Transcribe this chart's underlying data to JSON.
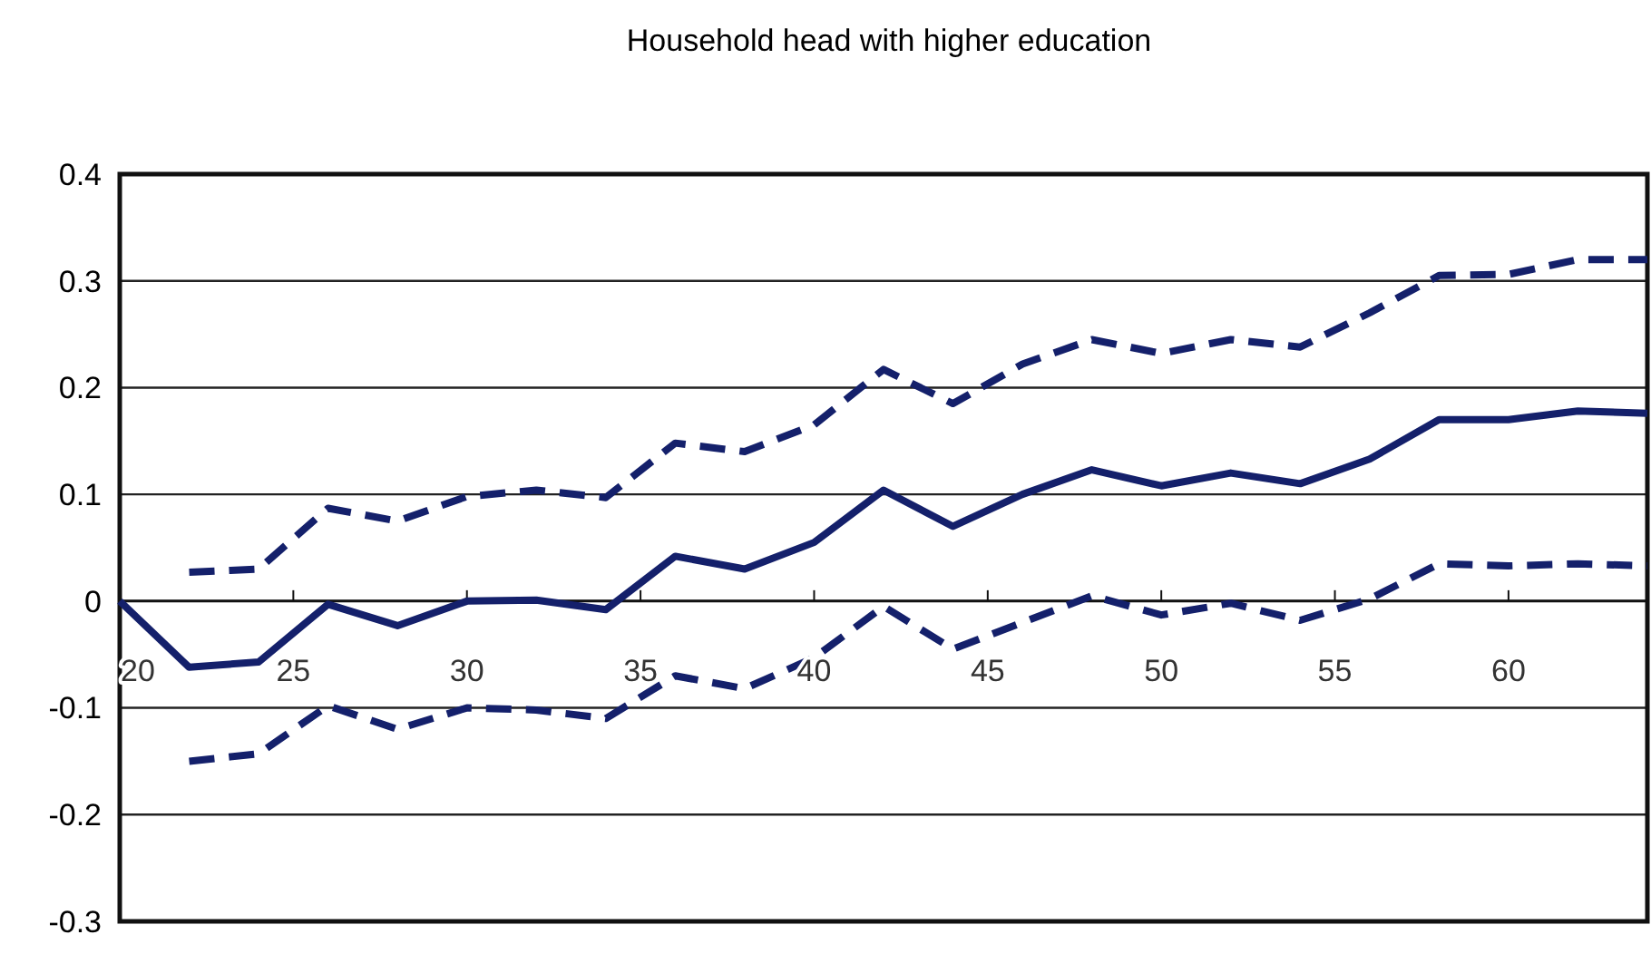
{
  "chart_data": {
    "type": "line",
    "title": "Household head with higher education",
    "x": [
      20,
      22,
      24,
      26,
      28,
      30,
      32,
      34,
      36,
      38,
      40,
      42,
      44,
      46,
      48,
      50,
      52,
      54,
      56,
      58,
      60,
      62,
      64
    ],
    "series": [
      {
        "color": "#14206b",
        "line_style": "solid",
        "values": [
          0,
          -0.062,
          -0.057,
          -0.003,
          -0.023,
          0,
          0.001,
          -0.008,
          0.042,
          0.03,
          0.055,
          0.104,
          0.07,
          0.1,
          0.123,
          0.108,
          0.12,
          0.11,
          0.133,
          0.17,
          0.17,
          0.178,
          0.176
        ]
      },
      {
        "color": "#14206b",
        "line_style": "dashed",
        "values": [
          null,
          0.027,
          0.03,
          0.087,
          0.075,
          0.098,
          0.104,
          0.097,
          0.148,
          0.14,
          0.165,
          0.217,
          0.185,
          0.222,
          0.245,
          0.232,
          0.245,
          0.238,
          0.27,
          0.305,
          0.306,
          0.32,
          0.32
        ]
      },
      {
        "color": "#14206b",
        "line_style": "dashed",
        "values": [
          null,
          -0.15,
          -0.143,
          -0.098,
          -0.12,
          -0.1,
          -0.102,
          -0.11,
          -0.07,
          -0.082,
          -0.053,
          -0.005,
          -0.045,
          -0.02,
          0.005,
          -0.013,
          -0.002,
          -0.018,
          0.002,
          0.035,
          0.033,
          0.035,
          0.033
        ]
      }
    ],
    "xlim": [
      20,
      64
    ],
    "xticks": [
      20,
      25,
      30,
      35,
      40,
      45,
      50,
      55,
      60
    ],
    "ylim": [
      -0.3,
      0.4
    ],
    "yticks": [
      -0.3,
      -0.2,
      -0.1,
      0,
      0.1,
      0.2,
      0.3,
      0.4
    ],
    "grid": "y",
    "marker": "none"
  }
}
